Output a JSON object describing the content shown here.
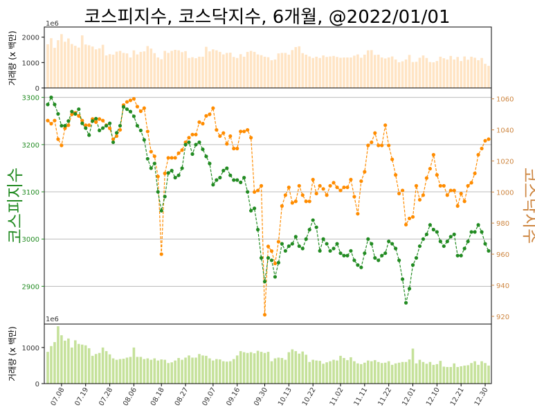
{
  "chart_data": {
    "type": "line",
    "title": "코스피지수, 코스닥지수, 6개월, @2022/01/01",
    "colors": {
      "kospi": "#228b22",
      "kosdaq": "#ff8c00",
      "kosdaq_axis": "#cd853f",
      "top_volume": "#ffe4c4",
      "bottom_volume": "#c5e19a",
      "grid": "#bbbbbb"
    },
    "x_tick_labels": [
      "07.08",
      "07.19",
      "07.28",
      "08.06",
      "08.18",
      "08.27",
      "09.07",
      "09.16",
      "09.30",
      "10.13",
      "10.22",
      "11.02",
      "11.11",
      "11.22",
      "12.01",
      "12.10",
      "12.21",
      "12.30"
    ],
    "x_tick_index": [
      4,
      11,
      18,
      25,
      33,
      40,
      48,
      55,
      63,
      70,
      77,
      85,
      92,
      99,
      106,
      113,
      120,
      127
    ],
    "main": {
      "left_axis": {
        "label": "코스피지수",
        "ylim": [
          2820,
          3320
        ],
        "ticks": [
          2900,
          3000,
          3100,
          3200,
          3300
        ]
      },
      "right_axis": {
        "label": "코스닥지수",
        "ylim": [
          915,
          1067
        ],
        "ticks": [
          920,
          940,
          960,
          980,
          1000,
          1020,
          1040,
          1060
        ]
      },
      "series": [
        {
          "name": "코스피지수",
          "axis": "left",
          "values": [
            3285,
            3300,
            3285,
            3265,
            3240,
            3240,
            3250,
            3270,
            3265,
            3275,
            3245,
            3235,
            3220,
            3250,
            3255,
            3230,
            3235,
            3240,
            3245,
            3205,
            3225,
            3240,
            3280,
            3275,
            3270,
            3260,
            3240,
            3230,
            3210,
            3170,
            3150,
            3160,
            3100,
            3060,
            3090,
            3140,
            3145,
            3130,
            3135,
            3150,
            3200,
            3205,
            3180,
            3200,
            3205,
            3190,
            3175,
            3160,
            3115,
            3125,
            3130,
            3145,
            3150,
            3135,
            3125,
            3125,
            3120,
            3130,
            3100,
            3060,
            3065,
            3020,
            2960,
            2910,
            2960,
            2955,
            2920,
            2950,
            2990,
            2975,
            2985,
            2990,
            3005,
            2985,
            2980,
            3000,
            3020,
            3040,
            3025,
            2975,
            3000,
            2990,
            2975,
            2980,
            2990,
            2970,
            2965,
            2965,
            2975,
            2955,
            2945,
            2940,
            2970,
            3000,
            2990,
            2960,
            2955,
            2965,
            2970,
            2995,
            2990,
            2980,
            2955,
            2915,
            2865,
            2895,
            2945,
            2960,
            2985,
            3000,
            3010,
            3030,
            3020,
            3015,
            2995,
            2985,
            2995,
            3005,
            3010,
            2965,
            2965,
            2980,
            2995,
            3015,
            3015,
            3030,
            3015,
            2990,
            2975
          ]
        },
        {
          "name": "코스닥지수",
          "axis": "right",
          "values": [
            1046,
            1044,
            1046,
            1034,
            1030,
            1041,
            1043,
            1050,
            1051,
            1049,
            1046,
            1043,
            1043,
            1047,
            1045,
            1047,
            1046,
            1043,
            1041,
            1034,
            1036,
            1040,
            1056,
            1058,
            1059,
            1060,
            1055,
            1052,
            1054,
            1039,
            1026,
            1023,
            1010,
            960,
            1012,
            1022,
            1022,
            1022,
            1025,
            1027,
            1032,
            1035,
            1037,
            1037,
            1045,
            1044,
            1049,
            1050,
            1054,
            1040,
            1036,
            1038,
            1031,
            1036,
            1028,
            1028,
            1039,
            1039,
            1040,
            1035,
            1000,
            1001,
            1004,
            921,
            965,
            962,
            954,
            968,
            991,
            998,
            1003,
            993,
            994,
            1004,
            998,
            994,
            994,
            1008,
            999,
            1004,
            1002,
            998,
            1004,
            1006,
            1003,
            1001,
            1003,
            1003,
            1008,
            997,
            986,
            1007,
            1013,
            1030,
            1032,
            1038,
            1030,
            1030,
            1043,
            1030,
            1021,
            1011,
            999,
            1001,
            979,
            983,
            984,
            1004,
            995,
            998,
            1009,
            1015,
            1024,
            1011,
            1004,
            1004,
            998,
            1001,
            1001,
            991,
            999,
            994,
            1004,
            1006,
            1012,
            1024,
            1028,
            1033,
            1034
          ]
        }
      ]
    },
    "volume_top": {
      "label": "거래량 (x 백만)",
      "scale_label": "1e6",
      "ylim": [
        0,
        2400
      ],
      "ticks": [
        0,
        1000,
        2000
      ],
      "tick_labels": [
        "0",
        "1000",
        "2000"
      ],
      "values": [
        1720,
        1960,
        1580,
        1880,
        2120,
        1820,
        1950,
        1730,
        1660,
        1590,
        2070,
        1710,
        1680,
        1630,
        1520,
        1560,
        1700,
        1280,
        1330,
        1310,
        1430,
        1460,
        1380,
        1360,
        1200,
        1480,
        1320,
        1420,
        1440,
        1650,
        1550,
        1370,
        1200,
        1130,
        1460,
        1380,
        1460,
        1500,
        1480,
        1410,
        1450,
        1180,
        1210,
        1170,
        1230,
        1230,
        1620,
        1440,
        1520,
        1480,
        1420,
        1320,
        1380,
        1390,
        1220,
        1180,
        1330,
        1230,
        1420,
        1460,
        1420,
        1320,
        1290,
        1230,
        1210,
        1090,
        1120,
        1360,
        1380,
        1380,
        1310,
        1490,
        1610,
        1640,
        1370,
        1310,
        1240,
        1180,
        1230,
        1180,
        1280,
        1220,
        1240,
        1260,
        1220,
        1190,
        1200,
        1200,
        1200,
        1270,
        1320,
        1190,
        1310,
        1480,
        1490,
        1300,
        1310,
        1200,
        1160,
        1200,
        1240,
        1120,
        1010,
        1050,
        1120,
        1300,
        1020,
        1030,
        1190,
        1280,
        1180,
        1020,
        1010,
        1060,
        1230,
        1170,
        1120,
        1260,
        1120,
        1220,
        1060,
        1240,
        1110,
        1230,
        1190,
        1090,
        1180,
        950,
        870
      ]
    },
    "volume_bottom": {
      "label": "거래량 (x 백만)",
      "scale_label": "1e6",
      "ylim": [
        0,
        1650
      ],
      "ticks": [
        0,
        1000
      ],
      "tick_labels": [
        "0",
        "1000"
      ],
      "values": [
        880,
        1040,
        1150,
        1590,
        1340,
        1190,
        1250,
        1000,
        1200,
        1100,
        1080,
        1060,
        980,
        770,
        820,
        850,
        1000,
        900,
        810,
        700,
        660,
        680,
        690,
        720,
        740,
        1000,
        740,
        740,
        680,
        700,
        660,
        700,
        640,
        670,
        660,
        570,
        590,
        640,
        710,
        660,
        720,
        780,
        720,
        720,
        820,
        780,
        770,
        700,
        640,
        680,
        670,
        620,
        610,
        620,
        680,
        780,
        900,
        870,
        850,
        870,
        840,
        910,
        880,
        850,
        880,
        620,
        700,
        720,
        710,
        660,
        870,
        950,
        900,
        830,
        890,
        800,
        600,
        660,
        640,
        630,
        550,
        590,
        620,
        660,
        640,
        770,
        710,
        650,
        730,
        620,
        560,
        540,
        580,
        640,
        620,
        650,
        600,
        570,
        580,
        620,
        520,
        560,
        580,
        600,
        600,
        670,
        970,
        560,
        660,
        600,
        550,
        600,
        520,
        540,
        630,
        470,
        460,
        460,
        560,
        460,
        480,
        500,
        510,
        570,
        620,
        520,
        620,
        570,
        500
      ]
    }
  }
}
